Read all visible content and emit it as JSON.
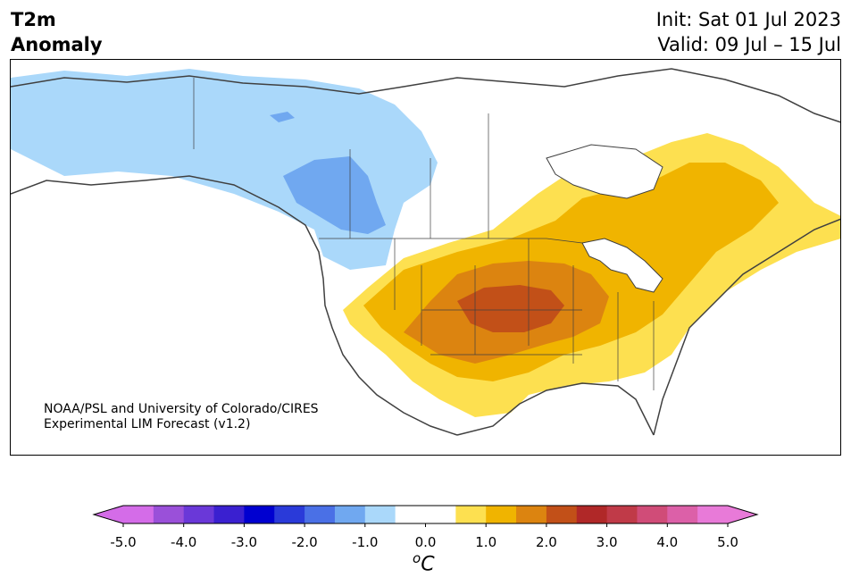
{
  "title": {
    "line1": "T2m",
    "line2": "Anomaly"
  },
  "dates": {
    "init": "Init: Sat 01 Jul 2023",
    "valid": "Valid: 09 Jul – 15 Jul"
  },
  "credit": {
    "line1": "NOAA/PSL and University of Colorado/CIRES",
    "line2": "Experimental LIM Forecast (v1.2)"
  },
  "colorbar": {
    "unit_symbol": "o",
    "unit_letter": "C",
    "ticks": [
      "-5.0",
      "-4.0",
      "-3.0",
      "-2.0",
      "-1.0",
      "0.0",
      "1.0",
      "2.0",
      "3.0",
      "4.0",
      "5.0"
    ],
    "colors": [
      "#d46ce8",
      "#9a50d9",
      "#6a38d8",
      "#3a20d0",
      "#0000d0",
      "#2a3ad9",
      "#4a70e6",
      "#70a8f0",
      "#aad8fa",
      "#ffffff",
      "#ffffff",
      "#fde050",
      "#f0b400",
      "#dc8410",
      "#c25018",
      "#b02828",
      "#c03a48",
      "#d04c78",
      "#dc60a8",
      "#e87ad8"
    ],
    "extend_low_color": "#d46ce8",
    "extend_high_color": "#e87ad8"
  },
  "map": {
    "region": "North America",
    "land_color": "#ffffff",
    "coastline_color": "#404040"
  }
}
